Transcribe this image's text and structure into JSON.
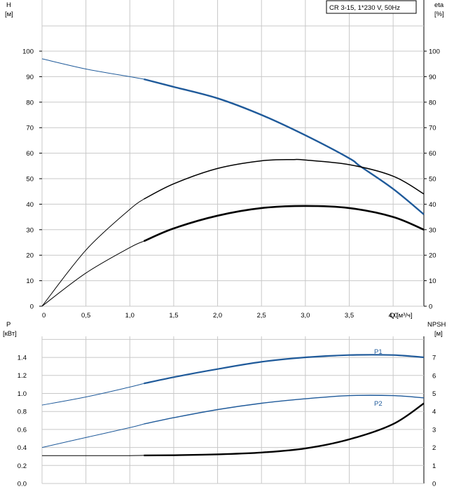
{
  "chart_data": [
    {
      "type": "line",
      "legend": "CR 3-15, 1*230 V, 50Hz",
      "y_left_label_line1": "H",
      "y_left_label_line2": "[м]",
      "y_right_label_line1": "eta",
      "y_right_label_line2": "[%]",
      "x_label": "Q [м³/ч]",
      "xlim": [
        0,
        4.35
      ],
      "ylim": [
        0,
        100
      ],
      "x_ticks": [
        "0",
        "0,5",
        "1,0",
        "1,5",
        "2,0",
        "2,5",
        "3,0",
        "3,5",
        "4,0"
      ],
      "y_ticks": [
        "0",
        "10",
        "20",
        "30",
        "40",
        "50",
        "60",
        "70",
        "80",
        "90",
        "100"
      ],
      "grid": true,
      "series": [
        {
          "id": "head",
          "color": "#1f5a9a",
          "x": [
            0,
            0.5,
            1.0,
            1.16,
            1.5,
            2.0,
            2.5,
            3.0,
            3.5,
            3.62,
            4.0,
            4.35
          ],
          "values": [
            97,
            93,
            90,
            89,
            86,
            81.5,
            75,
            67,
            58,
            55,
            46,
            36
          ],
          "operating_from": 1.16
        },
        {
          "id": "eta-upper",
          "color": "#000000",
          "x": [
            0,
            0.5,
            1.0,
            1.16,
            1.5,
            2.0,
            2.5,
            2.85,
            3.0,
            3.5,
            4.0,
            4.35
          ],
          "values": [
            0,
            22,
            38,
            42,
            48,
            54,
            57,
            57.5,
            57.3,
            55.5,
            51,
            44
          ],
          "operating_from": 1.16
        },
        {
          "id": "eta-lower",
          "color": "#000000",
          "x": [
            0,
            0.5,
            1.0,
            1.16,
            1.5,
            2.0,
            2.5,
            3.0,
            3.5,
            4.0,
            4.35
          ],
          "values": [
            0,
            13,
            23,
            25.5,
            30.5,
            35.5,
            38.5,
            39.3,
            38.5,
            35,
            30
          ],
          "operating_from": 1.16
        }
      ]
    },
    {
      "type": "line",
      "y_left_label_line1": "P",
      "y_left_label_line2": "[кВт]",
      "y_right_label_line1": "NPSH",
      "y_right_label_line2": "[м]",
      "xlim": [
        0,
        4.35
      ],
      "ylim": [
        0,
        1.6
      ],
      "y2lim": [
        0,
        8
      ],
      "y_ticks": [
        "0.0",
        "0.2",
        "0.4",
        "0.6",
        "0.8",
        "1.0",
        "1.2",
        "1.4"
      ],
      "y2_ticks": [
        "0",
        "1",
        "2",
        "3",
        "4",
        "5",
        "6",
        "7"
      ],
      "grid": true,
      "series": [
        {
          "id": "P1",
          "name": "P1",
          "color": "#1f5a9a",
          "axis": "left",
          "x": [
            0,
            0.5,
            1.0,
            1.16,
            1.5,
            2.0,
            2.5,
            3.0,
            3.5,
            4.0,
            4.35
          ],
          "values": [
            0.87,
            0.96,
            1.07,
            1.11,
            1.18,
            1.27,
            1.35,
            1.4,
            1.425,
            1.425,
            1.4
          ],
          "operating_from": 1.16
        },
        {
          "id": "P2",
          "name": "P2",
          "color": "#1f5a9a",
          "axis": "left",
          "x": [
            0,
            0.5,
            1.0,
            1.16,
            1.5,
            2.0,
            2.5,
            3.0,
            3.5,
            4.0,
            4.35
          ],
          "values": [
            0.4,
            0.51,
            0.62,
            0.66,
            0.73,
            0.82,
            0.89,
            0.94,
            0.975,
            0.975,
            0.95
          ],
          "operating_from": 1.16
        },
        {
          "id": "NPSH",
          "color": "#000000",
          "axis": "right",
          "x": [
            0,
            0.5,
            1.0,
            1.16,
            1.5,
            2.0,
            2.5,
            3.0,
            3.5,
            4.0,
            4.35
          ],
          "values": [
            1.55,
            1.55,
            1.55,
            1.56,
            1.57,
            1.62,
            1.72,
            1.95,
            2.45,
            3.3,
            4.45
          ],
          "operating_from": 1.16
        }
      ]
    }
  ]
}
